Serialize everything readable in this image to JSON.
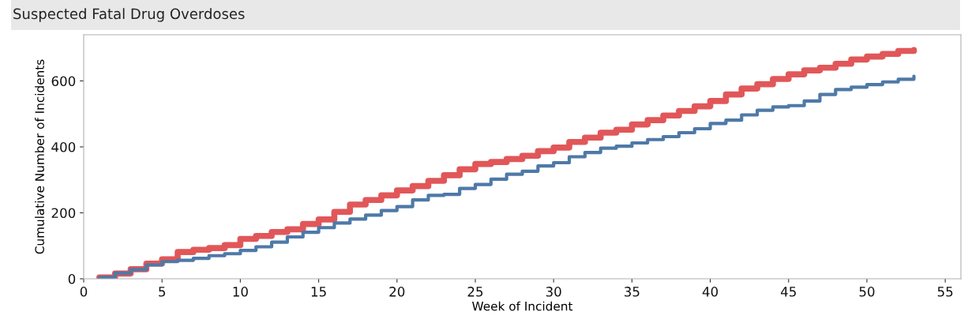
{
  "chart_data": {
    "type": "step",
    "title": "Suspected Fatal Drug Overdoses",
    "xlabel": "Week of Incident",
    "ylabel": "Cumulative Number of Incidents",
    "x": [
      1,
      2,
      3,
      4,
      5,
      6,
      7,
      8,
      9,
      10,
      11,
      12,
      13,
      14,
      15,
      16,
      17,
      18,
      19,
      20,
      21,
      22,
      23,
      24,
      25,
      26,
      27,
      28,
      29,
      30,
      31,
      32,
      33,
      34,
      35,
      36,
      37,
      38,
      39,
      40,
      41,
      42,
      43,
      44,
      45,
      46,
      47,
      48,
      49,
      50,
      51,
      52,
      53
    ],
    "series": [
      {
        "color": "#e15759",
        "values": [
          4,
          16,
          29,
          46,
          59,
          81,
          88,
          93,
          102,
          121,
          130,
          142,
          150,
          166,
          180,
          203,
          225,
          239,
          253,
          268,
          281,
          297,
          314,
          332,
          348,
          354,
          363,
          373,
          387,
          398,
          415,
          428,
          443,
          452,
          468,
          481,
          495,
          509,
          523,
          539,
          559,
          577,
          590,
          606,
          620,
          632,
          640,
          652,
          665,
          674,
          682,
          691,
          694
        ]
      },
      {
        "color": "#4e79a7",
        "values": [
          4,
          17,
          28,
          42,
          52,
          56,
          62,
          70,
          76,
          86,
          97,
          111,
          127,
          141,
          155,
          169,
          181,
          193,
          207,
          219,
          239,
          253,
          256,
          274,
          286,
          302,
          317,
          326,
          342,
          352,
          370,
          383,
          396,
          402,
          412,
          422,
          431,
          443,
          455,
          471,
          481,
          497,
          511,
          521,
          525,
          539,
          559,
          574,
          581,
          589,
          597,
          605,
          614
        ]
      }
    ],
    "xlim": [
      0,
      56
    ],
    "xticks": [
      0,
      5,
      10,
      15,
      20,
      25,
      30,
      35,
      40,
      45,
      50,
      55
    ],
    "ylim": [
      0,
      740
    ],
    "yticks": [
      0,
      200,
      400,
      600
    ],
    "grid": false,
    "legend": false
  }
}
